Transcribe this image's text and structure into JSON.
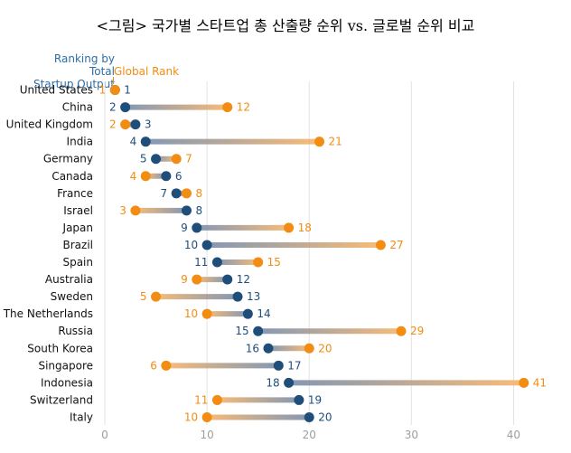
{
  "title": "<그림> 국가별 스타트업 총 산출량 순위 vs. 글로벌 순위 비교",
  "legend": {
    "total_line1": "Ranking by Total",
    "total_line2": "Startup Output",
    "global": "Global Rank"
  },
  "colors": {
    "total": "#1f4e7a",
    "global": "#f28c12",
    "grid": "#e3e3e3"
  },
  "chart_data": {
    "type": "dumbbell",
    "title": "<그림> 국가별 스타트업 총 산출량 순위 vs. 글로벌 순위 비교",
    "xlim": [
      0,
      45
    ],
    "xticks": [
      0,
      10,
      20,
      30,
      40
    ],
    "grid": true,
    "categories": [
      "United States",
      "China",
      "United Kingdom",
      "India",
      "Germany",
      "Canada",
      "France",
      "Israel",
      "Japan",
      "Brazil",
      "Spain",
      "Australia",
      "Sweden",
      "The Netherlands",
      "Russia",
      "South Korea",
      "Singapore",
      "Indonesia",
      "Switzerland",
      "Italy"
    ],
    "series": [
      {
        "name": "Ranking by Total Startup Output",
        "values": [
          1,
          2,
          3,
          4,
          5,
          6,
          7,
          8,
          9,
          10,
          11,
          12,
          13,
          14,
          15,
          16,
          17,
          18,
          19,
          20
        ]
      },
      {
        "name": "Global Rank",
        "values": [
          1,
          12,
          2,
          21,
          7,
          4,
          8,
          3,
          18,
          27,
          15,
          9,
          5,
          10,
          29,
          20,
          6,
          41,
          11,
          10
        ]
      }
    ]
  }
}
